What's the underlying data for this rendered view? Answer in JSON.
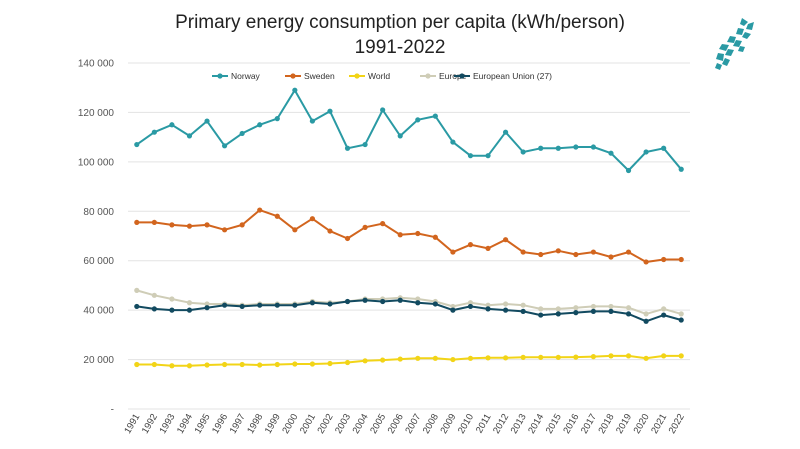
{
  "chart_data": {
    "type": "line",
    "title": "Primary energy consumption per capita (kWh/person)",
    "subtitle": "1991-2022",
    "xlabel": "",
    "ylabel": "",
    "ylim": [
      0,
      140000
    ],
    "yticks": [
      0,
      20000,
      40000,
      60000,
      80000,
      100000,
      120000,
      140000
    ],
    "ytick_labels": [
      "-",
      "20 000",
      "40 000",
      "60 000",
      "80 000",
      "100 000",
      "120 000",
      "140 000"
    ],
    "grid": "horizontal",
    "legend_position": "top",
    "categories": [
      "1991",
      "1992",
      "1993",
      "1994",
      "1995",
      "1996",
      "1997",
      "1998",
      "1999",
      "2000",
      "2001",
      "2002",
      "2003",
      "2004",
      "2005",
      "2006",
      "2007",
      "2008",
      "2009",
      "2010",
      "2011",
      "2012",
      "2013",
      "2014",
      "2015",
      "2016",
      "2017",
      "2018",
      "2019",
      "2020",
      "2021",
      "2022"
    ],
    "series": [
      {
        "name": "Norway",
        "color": "#2a9aa4",
        "values": [
          107000,
          112000,
          115000,
          110500,
          116500,
          106500,
          111500,
          115000,
          117500,
          129000,
          116500,
          120500,
          105500,
          107000,
          121000,
          110500,
          117000,
          118500,
          108000,
          102500,
          102500,
          112000,
          104000,
          105500,
          105500,
          106000,
          106000,
          103500,
          96500,
          104000,
          105500,
          97000
        ]
      },
      {
        "name": "Sweden",
        "color": "#d2651e",
        "values": [
          75500,
          75500,
          74500,
          74000,
          74500,
          72500,
          74500,
          80500,
          78000,
          72500,
          77000,
          72000,
          69000,
          73500,
          75000,
          70500,
          71000,
          69500,
          63500,
          66500,
          65000,
          68500,
          63500,
          62500,
          64000,
          62500,
          63500,
          61500,
          63500,
          59500,
          60500,
          60500
        ]
      },
      {
        "name": "World",
        "color": "#f2d417",
        "values": [
          18000,
          18000,
          17500,
          17500,
          17800,
          18000,
          18000,
          17800,
          18000,
          18200,
          18200,
          18400,
          18800,
          19500,
          19800,
          20200,
          20500,
          20500,
          20000,
          20500,
          20700,
          20700,
          20900,
          20900,
          20900,
          21000,
          21200,
          21500,
          21500,
          20500,
          21500,
          21500
        ]
      },
      {
        "name": "Europe",
        "color": "#cfcdb7",
        "values": [
          48000,
          46000,
          44500,
          43000,
          42500,
          42500,
          42000,
          42500,
          42500,
          42500,
          43500,
          43000,
          43500,
          44500,
          44500,
          45000,
          44500,
          43500,
          41500,
          43000,
          42000,
          42500,
          42000,
          40500,
          40500,
          41000,
          41500,
          41500,
          41000,
          38500,
          40500,
          38500
        ]
      },
      {
        "name": "European Union (27)",
        "color": "#124a60",
        "values": [
          41500,
          40500,
          40000,
          40000,
          41000,
          42000,
          41500,
          42000,
          42000,
          42000,
          43000,
          42500,
          43500,
          44000,
          43500,
          44000,
          43000,
          42500,
          40000,
          41500,
          40500,
          40000,
          39500,
          38000,
          38500,
          39000,
          39500,
          39500,
          38500,
          35500,
          38000,
          36000
        ]
      }
    ]
  }
}
